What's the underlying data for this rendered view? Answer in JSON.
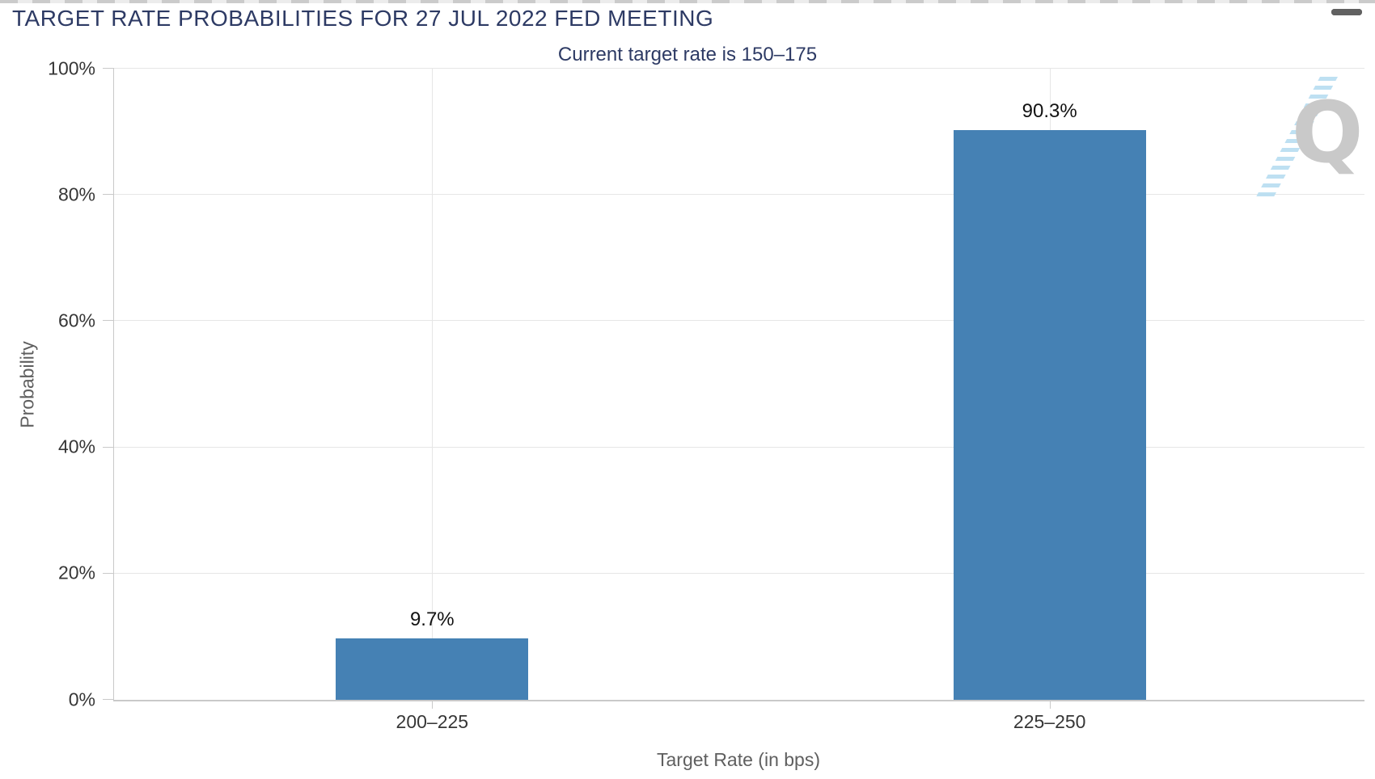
{
  "header": {
    "menu_icon": "hamburger-menu-icon"
  },
  "chart_data": {
    "type": "bar",
    "title": "TARGET RATE PROBABILITIES FOR 27 JUL 2022 FED MEETING",
    "subtitle": "Current target rate is 150–175",
    "categories": [
      "200–225",
      "225–250"
    ],
    "values": [
      9.7,
      90.3
    ],
    "value_labels": [
      "9.7%",
      "90.3%"
    ],
    "xlabel": "Target Rate (in bps)",
    "ylabel": "Probability",
    "ylim": [
      0,
      100
    ],
    "ytick_labels": [
      "0%",
      "20%",
      "40%",
      "60%",
      "80%",
      "100%"
    ],
    "grid": true,
    "legend": false
  },
  "watermark": {
    "letter": "Q"
  },
  "colors": {
    "bar": "#4581b4",
    "title": "#2d3a64",
    "axis_label": "#363636",
    "axis_title": "#5f5f5f",
    "gridline": "#e6e6e6",
    "axis_line": "#c9c9c9",
    "menu_icon": "#616161",
    "watermark_gray": "#c9c9c9",
    "watermark_blue": "#b7ddf1"
  }
}
